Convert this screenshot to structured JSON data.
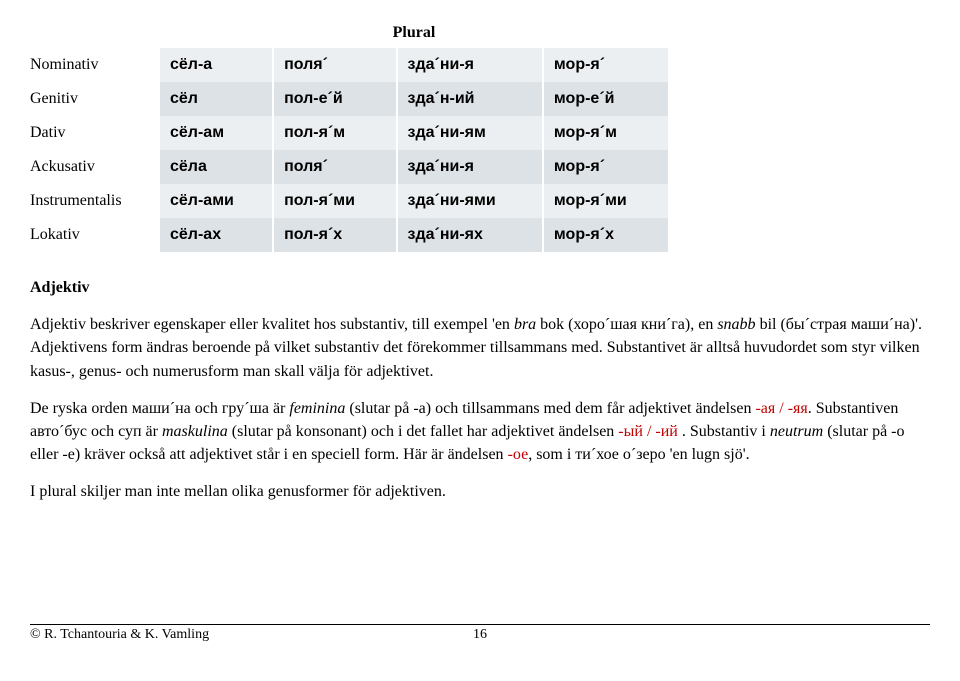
{
  "table": {
    "header": "Plural",
    "cases": [
      "Nominativ",
      "Genitiv",
      "Dativ",
      "Ackusativ",
      "Instrumentalis",
      "Lokativ"
    ],
    "rows": [
      [
        "сёл-а",
        "поля´",
        "зда´ни-я",
        "мор-я´"
      ],
      [
        "сёл",
        "пол-е´й",
        "зда´н-ий",
        "мор-е´й"
      ],
      [
        "сёл-ам",
        "пол-я´м",
        "зда´ни-ям",
        "мор-я´м"
      ],
      [
        "сёла",
        "поля´",
        "зда´ни-я",
        "мор-я´"
      ],
      [
        "сёл-ами",
        "пол-я´ми",
        "зда´ни-ями",
        "мор-я´ми"
      ],
      [
        "сёл-ах",
        "пол-я´х",
        "зда´ни-ях",
        "мор-я´х"
      ]
    ],
    "row_shading": [
      "odd",
      "even",
      "odd",
      "even",
      "odd",
      "even"
    ],
    "colors": {
      "odd_bg": "#eceff1",
      "even_bg": "#dde2e6",
      "text": "#000000",
      "red": "#c00000"
    }
  },
  "heading": "Adjektiv",
  "para1": {
    "t1": "Adjektiv beskriver egenskaper eller kvalitet hos substantiv, till exempel 'en ",
    "i1": "bra",
    "t2": " bok (хоро´шая кни´га), en ",
    "i2": "snabb",
    "t3": " bil (бы´страя маши´на)'. Adjektivens form ändras beroende på vilket substantiv det förekommer tillsammans med. Substantivet är alltså huvudordet som styr vilken kasus-, genus- och numerusform man skall välja för adjektivet."
  },
  "para2": {
    "t1": "De ryska orden маши´на och гру´ша är ",
    "i1": "feminina",
    "t2": " (slutar på -а) och tillsammans med dem får adjektivet ändelsen ",
    "r1": "-ая / -яя",
    "t3": ". Substantiven авто´бус och суп är ",
    "i2": "maskulina",
    "t4": " (slutar på konsonant) och i det fallet har adjektivet ändelsen ",
    "r2": "-ый / -ий ",
    "t5": ". Substantiv i ",
    "i3": "neutrum",
    "t6": " (slutar på -о eller -е) kräver också att adjektivet står i en speciell form. Här är ändelsen ",
    "r3": "-ое",
    "t7": ", som i ти´хое о´зеро 'en lugn sjö'."
  },
  "para3": "I plural skiljer man inte mellan olika genusformer för adjektiven.",
  "footer": {
    "copyright": "© R. Tchantouria & K. Vamling",
    "page": "16"
  }
}
